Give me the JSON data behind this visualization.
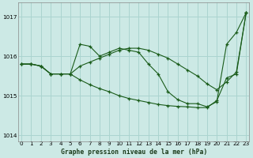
{
  "xlabel": "Graphe pression niveau de la mer (hPa)",
  "ylim": [
    1013.85,
    1017.35
  ],
  "xlim": [
    -0.3,
    23.3
  ],
  "yticks": [
    1014,
    1015,
    1016,
    1017
  ],
  "xticks": [
    0,
    1,
    2,
    3,
    4,
    5,
    6,
    7,
    8,
    9,
    10,
    11,
    12,
    13,
    14,
    15,
    16,
    17,
    18,
    19,
    20,
    21,
    22,
    23
  ],
  "background_color": "#cce9e5",
  "grid_color": "#aad4cf",
  "line_color": "#1a5c1a",
  "line1_x": [
    0,
    1,
    2,
    3,
    4,
    5,
    6,
    7,
    8,
    9,
    10,
    11,
    12,
    13,
    14,
    15,
    16,
    17,
    18,
    19,
    20,
    21,
    22,
    23
  ],
  "line1_y": [
    1015.8,
    1015.8,
    1015.75,
    1015.55,
    1015.55,
    1015.55,
    1016.3,
    1016.25,
    1016.0,
    1016.1,
    1016.2,
    1016.15,
    1016.1,
    1015.8,
    1015.55,
    1015.1,
    1014.9,
    1014.8,
    1014.8,
    1014.72,
    1014.85,
    1016.3,
    1016.6,
    1017.1
  ],
  "line2_x": [
    0,
    1,
    2,
    3,
    4,
    5,
    6,
    7,
    8,
    9,
    10,
    11,
    12,
    13,
    14,
    15,
    16,
    17,
    18,
    19,
    20,
    21,
    22,
    23
  ],
  "line2_y": [
    1015.8,
    1015.8,
    1015.75,
    1015.55,
    1015.55,
    1015.55,
    1015.75,
    1015.85,
    1015.95,
    1016.05,
    1016.15,
    1016.2,
    1016.2,
    1016.15,
    1016.05,
    1015.95,
    1015.8,
    1015.65,
    1015.5,
    1015.3,
    1015.15,
    1015.35,
    1015.6,
    1017.1
  ],
  "line3_x": [
    0,
    1,
    2,
    3,
    4,
    5,
    6,
    7,
    8,
    9,
    10,
    11,
    12,
    13,
    14,
    15,
    16,
    17,
    18,
    19,
    20,
    21,
    22,
    23
  ],
  "line3_y": [
    1015.8,
    1015.8,
    1015.75,
    1015.55,
    1015.55,
    1015.55,
    1015.4,
    1015.28,
    1015.18,
    1015.1,
    1015.0,
    1014.93,
    1014.88,
    1014.83,
    1014.78,
    1014.75,
    1014.73,
    1014.72,
    1014.7,
    1014.7,
    1014.88,
    1015.45,
    1015.55,
    1017.1
  ]
}
